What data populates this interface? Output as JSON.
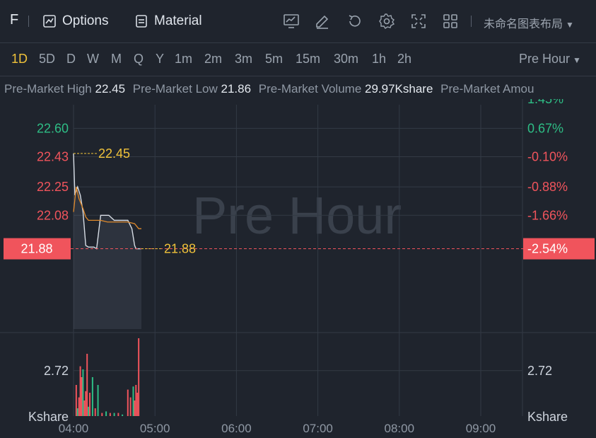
{
  "toolbar": {
    "symbol": "F",
    "options_label": "Options",
    "material_label": "Material",
    "layout_name": "未命名图表布局",
    "icons": [
      "chart-line-icon",
      "edit-icon",
      "refresh-icon",
      "gear-icon",
      "fullscreen-icon",
      "grid-layout-icon"
    ]
  },
  "periods": {
    "items": [
      "1D",
      "5D",
      "D",
      "W",
      "M",
      "Q",
      "Y",
      "1m",
      "2m",
      "3m",
      "5m",
      "15m",
      "30m",
      "1h",
      "2h"
    ],
    "active": "1D",
    "session_label": "Pre Hour"
  },
  "stats": {
    "high_label": "Pre-Market High",
    "high_value": "22.45",
    "low_label": "Pre-Market Low",
    "low_value": "21.86",
    "volume_label": "Pre-Market Volume",
    "volume_value": "29.97Kshare",
    "amount_label": "Pre-Market Amou"
  },
  "colors": {
    "background": "#1f242d",
    "up": "#2ebd85",
    "down": "#f0545c",
    "accent": "#f0c23a",
    "avg_line": "#e08a2c",
    "price_line": "#d7dde5"
  },
  "chart_data": {
    "type": "line",
    "watermark": "Pre Hour",
    "x_ticks": [
      "04:00",
      "05:00",
      "06:00",
      "07:00",
      "08:00",
      "09:00"
    ],
    "price_ticks_left": [
      {
        "label": "22.60",
        "value": 22.6,
        "color": "up"
      },
      {
        "label": "22.43",
        "value": 22.43,
        "color": "down"
      },
      {
        "label": "22.25",
        "value": 22.25,
        "color": "down"
      },
      {
        "label": "22.08",
        "value": 22.08,
        "color": "down"
      }
    ],
    "percent_ticks_right": [
      {
        "label": "1.45%",
        "value": 22.775,
        "color": "up"
      },
      {
        "label": "0.67%",
        "value": 22.6,
        "color": "up"
      },
      {
        "label": "-0.10%",
        "value": 22.43,
        "color": "down"
      },
      {
        "label": "-0.88%",
        "value": 22.25,
        "color": "down"
      },
      {
        "label": "-1.66%",
        "value": 22.08,
        "color": "down"
      }
    ],
    "ylim": [
      21.4,
      22.775
    ],
    "current_price": {
      "label": "21.88",
      "value": 21.88,
      "percent": "-2.54%"
    },
    "high_marker": {
      "label": "22.45",
      "value": 22.45
    },
    "last_label": "21.88",
    "price_series": {
      "minutes": [
        0,
        1,
        3,
        5,
        7,
        9,
        11,
        13,
        15,
        17,
        20,
        23,
        26,
        30,
        35,
        40,
        43,
        45,
        46,
        48,
        50
      ],
      "values": [
        22.45,
        22.2,
        22.25,
        22.2,
        22.1,
        21.9,
        21.89,
        21.89,
        21.89,
        21.88,
        22.08,
        22.08,
        22.08,
        22.05,
        22.05,
        22.05,
        22.0,
        21.9,
        21.88,
        21.88,
        21.88
      ]
    },
    "avg_series": {
      "minutes": [
        0,
        2,
        4,
        7,
        9,
        11,
        13,
        15,
        20,
        25,
        30,
        35,
        40,
        45,
        48,
        50
      ],
      "values": [
        22.1,
        22.25,
        22.18,
        22.12,
        22.07,
        22.05,
        22.05,
        22.05,
        22.05,
        22.04,
        22.04,
        22.04,
        22.04,
        22.03,
        22.0,
        22.0
      ]
    },
    "volume_axis": {
      "label": "2.72",
      "unit": "Kshare",
      "max": 5.0
    },
    "volume_series": {
      "minutes": [
        2,
        3,
        4,
        5,
        6,
        7,
        8,
        9,
        10,
        11,
        12,
        14,
        16,
        18,
        21,
        24,
        27,
        30,
        33,
        36,
        40,
        42,
        44,
        45,
        46,
        47,
        48
      ],
      "values": [
        2.0,
        0.5,
        1.2,
        3.2,
        2.5,
        3.0,
        1.0,
        1.6,
        4.0,
        0.6,
        1.5,
        2.5,
        0.5,
        2.0,
        0.2,
        0.3,
        0.2,
        0.2,
        0.2,
        0.1,
        1.7,
        1.2,
        1.9,
        1.0,
        2.0,
        1.5,
        6.0
      ],
      "colors": [
        "down",
        "up",
        "down",
        "down",
        "down",
        "up",
        "down",
        "down",
        "down",
        "up",
        "down",
        "up",
        "down",
        "up",
        "down",
        "up",
        "down",
        "up",
        "down",
        "up",
        "down",
        "down",
        "up",
        "down",
        "down",
        "down",
        "down"
      ]
    }
  }
}
